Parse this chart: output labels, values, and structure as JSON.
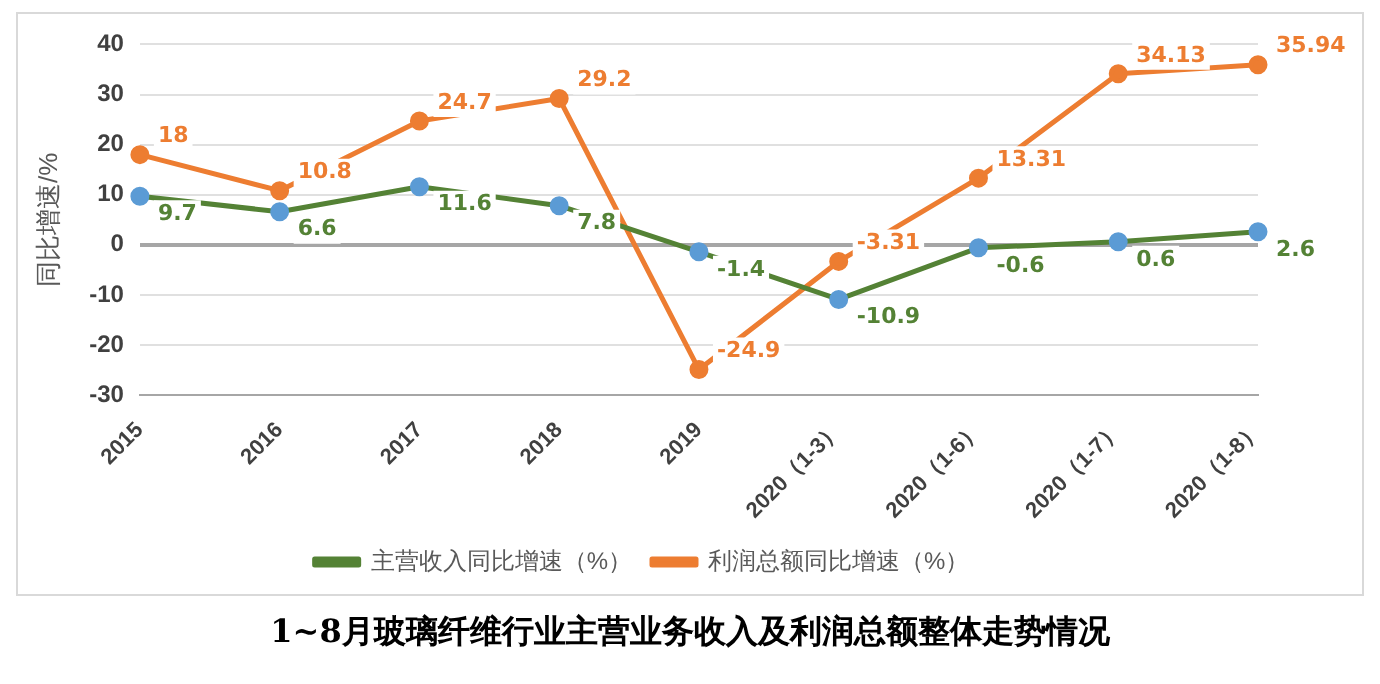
{
  "chart_data": {
    "type": "line",
    "title": "1~8月玻璃纤维行业主营业务收入及利润总额整体走势情况",
    "ylabel": "同比增速/%",
    "categories": [
      "2015",
      "2016",
      "2017",
      "2018",
      "2019",
      "2020（1-3）",
      "2020（1-6）",
      "2020（1-7）",
      "2020（1-8）"
    ],
    "series": [
      {
        "name": "主营收入同比增速（%）",
        "color": "#548235",
        "colors": [
          "#5b9bd5",
          "#5b9bd5",
          "#5b9bd5",
          "#5b9bd5",
          "#5b9bd5",
          "#5b9bd5",
          "#5b9bd5",
          "#5b9bd5",
          "#5b9bd5"
        ],
        "values": [
          9.7,
          6.6,
          11.6,
          7.8,
          -1.4,
          -10.9,
          -0.6,
          0.6,
          2.6
        ]
      },
      {
        "name": "利润总额同比增速（%）",
        "color": "#ed7d31",
        "values": [
          18,
          10.8,
          24.7,
          29.2,
          -24.9,
          -3.31,
          13.31,
          34.13,
          35.94
        ]
      }
    ],
    "ylim": [
      -30,
      40
    ],
    "yticks": [
      -30,
      -20,
      -10,
      0,
      10,
      20,
      30,
      40
    ],
    "grid": "y",
    "legend": "bottom",
    "marker": "circle",
    "data_labels": true
  }
}
